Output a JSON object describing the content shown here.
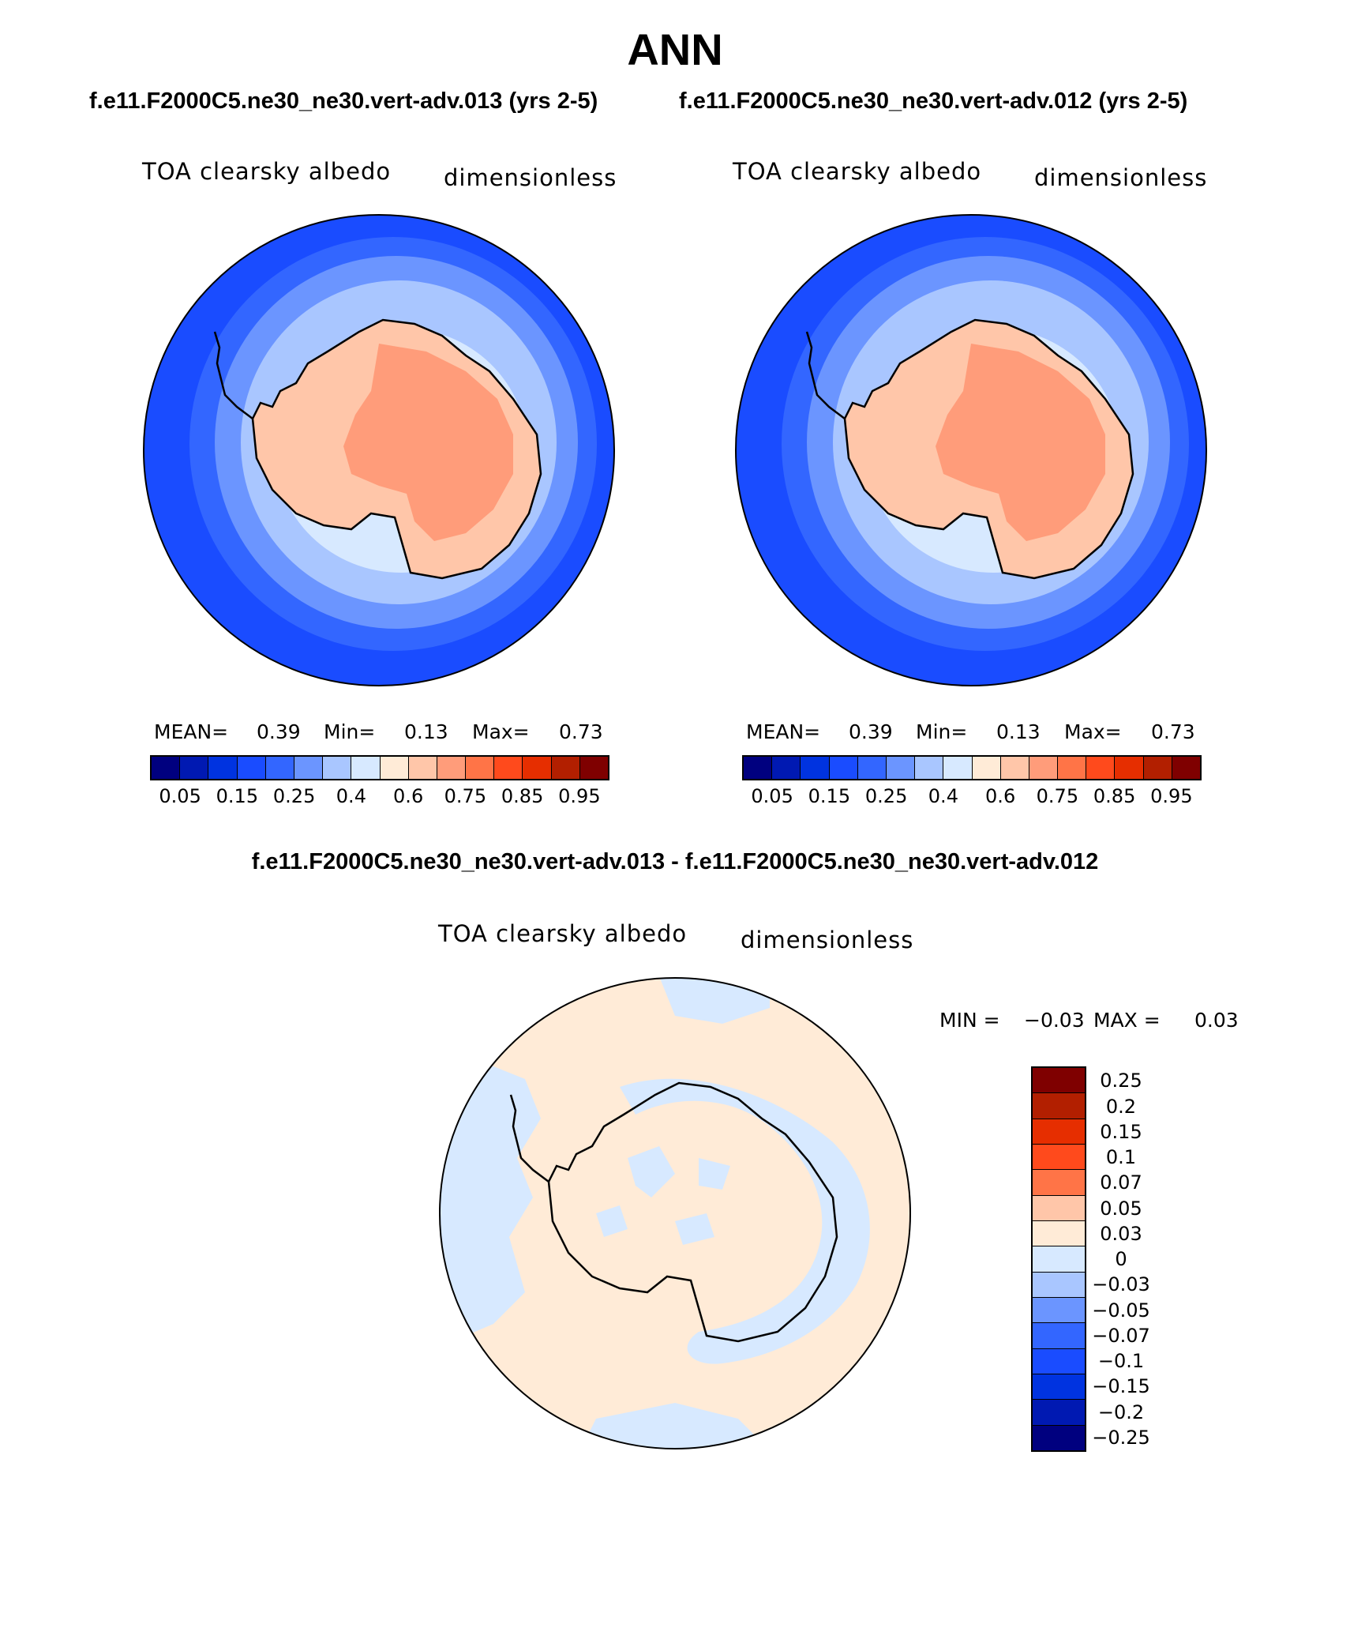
{
  "main_title": "ANN",
  "panels": [
    {
      "case": "f.e11.F2000C5.ne30_ne30.vert-adv.013 (yrs 2-5)",
      "variable": "TOA clearsky albedo",
      "units": "dimensionless",
      "mean_label": "MEAN=",
      "mean": "0.39",
      "min_label": "Min=",
      "min": "0.13",
      "max_label": "Max=",
      "max": "0.73"
    },
    {
      "case": "f.e11.F2000C5.ne30_ne30.vert-adv.012 (yrs 2-5)",
      "variable": "TOA clearsky albedo",
      "units": "dimensionless",
      "mean_label": "MEAN=",
      "mean": "0.39",
      "min_label": "Min=",
      "min": "0.13",
      "max_label": "Max=",
      "max": "0.73"
    }
  ],
  "colorbar": {
    "colors": [
      "#00007f",
      "#0019b2",
      "#0033e0",
      "#1a4cff",
      "#3366ff",
      "#6b95ff",
      "#a9c6ff",
      "#d7e9ff",
      "#ffebd7",
      "#ffc6a9",
      "#ff9c7a",
      "#ff7447",
      "#ff4a1c",
      "#e62e00",
      "#b21f00",
      "#7f0000"
    ],
    "tick_labels": [
      "0.05",
      "0.15",
      "0.25",
      "0.4",
      "0.6",
      "0.75",
      "0.85",
      "0.95"
    ]
  },
  "difference": {
    "title": "f.e11.F2000C5.ne30_ne30.vert-adv.013 - f.e11.F2000C5.ne30_ne30.vert-adv.012",
    "variable": "TOA clearsky albedo",
    "units": "dimensionless",
    "min_label": "MIN =",
    "min": "−0.03",
    "max_label": "MAX =",
    "max": "0.03",
    "colors_top_to_bottom": [
      "#7f0000",
      "#b21f00",
      "#e62e00",
      "#ff4a1c",
      "#ff7447",
      "#ffc6a9",
      "#ffebd7",
      "#d7e9ff",
      "#a9c6ff",
      "#6b95ff",
      "#3366ff",
      "#1a4cff",
      "#0033e0",
      "#0019b2",
      "#00007f"
    ],
    "tick_labels": [
      "0.25",
      "0.2",
      "0.15",
      "0.1",
      "0.07",
      "0.05",
      "0.03",
      "0",
      "−0.03",
      "−0.05",
      "−0.07",
      "−0.1",
      "−0.15",
      "−0.2",
      "−0.25"
    ]
  },
  "map_colors": {
    "ocean_outer": "#1a4cff",
    "ring_2": "#3366ff",
    "ring_3": "#6b95ff",
    "ring_4": "#a9c6ff",
    "ring_5": "#d7e9ff",
    "land_coast": "#ffc6a9",
    "land_interior": "#ff9c7a",
    "diff_pos": "#ffebd7",
    "diff_neg": "#d7e9ff"
  }
}
